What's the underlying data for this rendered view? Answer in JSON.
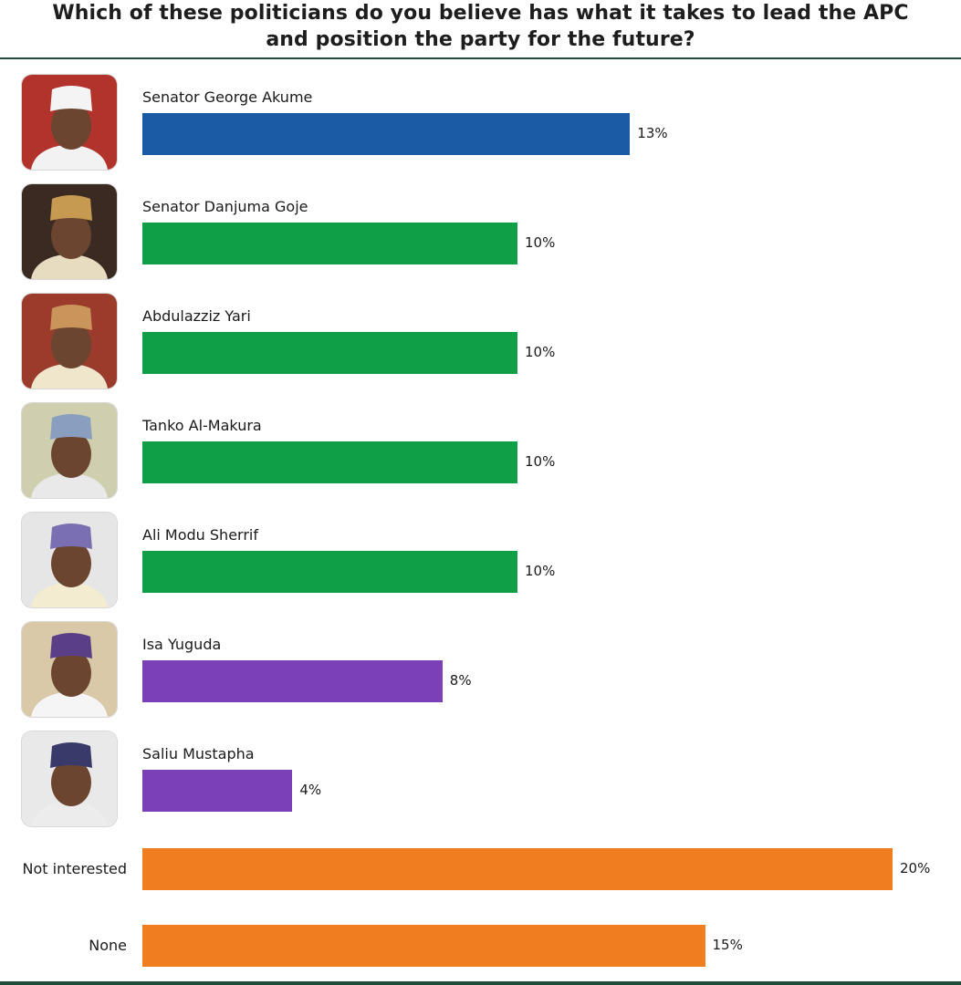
{
  "title": {
    "line1": "Which of these politicians do you believe has what it takes to lead the APC",
    "line2": "and position the party for the future?"
  },
  "chart_data": {
    "type": "bar",
    "orientation": "horizontal",
    "categories": [
      "Senator George Akume",
      "Senator Danjuma Goje",
      "Abdulazziz Yari",
      "Tanko Al-Makura",
      "Ali Modu Sherrif",
      "Isa Yuguda",
      "Saliu Mustapha",
      "Not interested",
      "None"
    ],
    "values": [
      13,
      10,
      10,
      10,
      10,
      8,
      4,
      20,
      15
    ],
    "value_labels": [
      "13%",
      "10%",
      "10%",
      "10%",
      "10%",
      "8%",
      "4%",
      "20%",
      "15%"
    ],
    "bar_colors": [
      "#1b5ba6",
      "#0e9f47",
      "#0e9f47",
      "#0e9f47",
      "#0e9f47",
      "#7b3fb6",
      "#7b3fb6",
      "#f07e21",
      "#f07e21"
    ],
    "has_photo": [
      true,
      true,
      true,
      true,
      true,
      true,
      true,
      false,
      false
    ],
    "title": "Which of these politicians do you believe has what it takes to lead the APC and position the party for the future?",
    "xlabel": "",
    "ylabel": "",
    "xlim": [
      0,
      20
    ],
    "grid": false,
    "legend": "none"
  },
  "colors": {
    "rule": "#1f4f3a"
  }
}
